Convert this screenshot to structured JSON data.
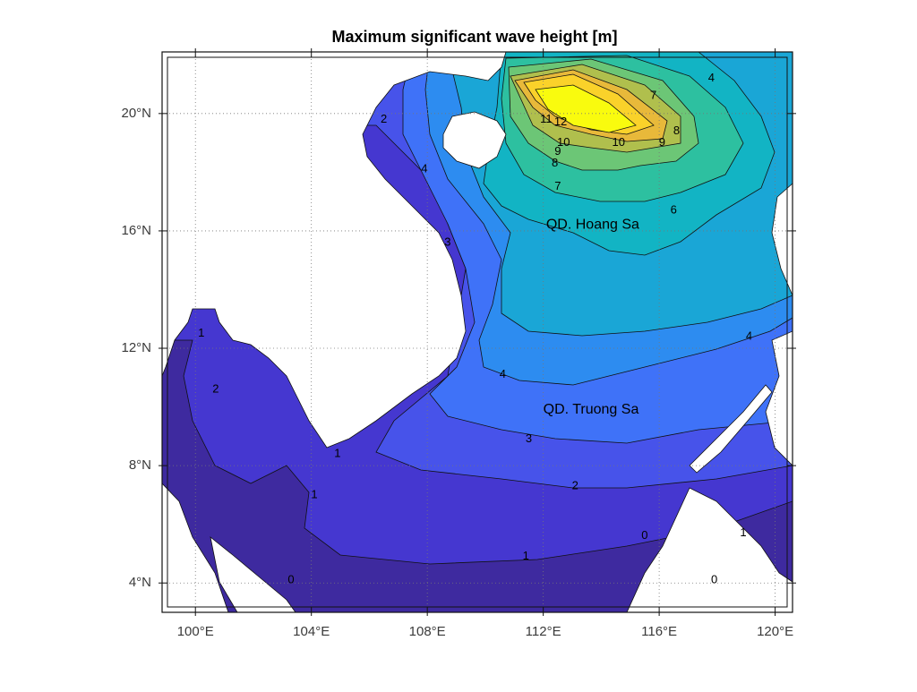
{
  "chart_data": {
    "type": "contour-map",
    "title": "Maximum significant wave height [m]",
    "xlim": [
      98.85,
      120.6
    ],
    "ylim": [
      3.0,
      22.1
    ],
    "xticks": [
      {
        "value": 100,
        "label": "100°E"
      },
      {
        "value": 104,
        "label": "104°E"
      },
      {
        "value": 108,
        "label": "108°E"
      },
      {
        "value": 112,
        "label": "112°E"
      },
      {
        "value": 116,
        "label": "116°E"
      },
      {
        "value": 120,
        "label": "120°E"
      }
    ],
    "yticks": [
      {
        "value": 4,
        "label": "4°N"
      },
      {
        "value": 8,
        "label": "8°N"
      },
      {
        "value": 12,
        "label": "12°N"
      },
      {
        "value": 16,
        "label": "16°N"
      },
      {
        "value": 20,
        "label": "20°N"
      }
    ],
    "grid": true,
    "contour_labels": [
      {
        "value": 7,
        "lon": 115.8,
        "lat": 20.6
      },
      {
        "value": 4,
        "lon": 117.8,
        "lat": 21.2
      },
      {
        "value": 8,
        "lon": 116.6,
        "lat": 19.4
      },
      {
        "value": 9,
        "lon": 116.1,
        "lat": 19.0
      },
      {
        "value": 10,
        "lon": 114.6,
        "lat": 19.0
      },
      {
        "value": 10,
        "lon": 112.7,
        "lat": 19.0
      },
      {
        "value": 11,
        "lon": 112.1,
        "lat": 19.8
      },
      {
        "value": 12,
        "lon": 112.6,
        "lat": 19.7
      },
      {
        "value": 9,
        "lon": 112.5,
        "lat": 18.7
      },
      {
        "value": 8,
        "lon": 112.4,
        "lat": 18.3
      },
      {
        "value": 7,
        "lon": 112.5,
        "lat": 17.5
      },
      {
        "value": 6,
        "lon": 116.5,
        "lat": 16.7
      },
      {
        "value": 3,
        "lon": 108.7,
        "lat": 15.6
      },
      {
        "value": 2,
        "lon": 106.5,
        "lat": 19.8
      },
      {
        "value": 4,
        "lon": 107.9,
        "lat": 18.1
      },
      {
        "value": 4,
        "lon": 110.6,
        "lat": 11.1
      },
      {
        "value": 4,
        "lon": 119.1,
        "lat": 12.4
      },
      {
        "value": 3,
        "lon": 111.5,
        "lat": 8.9
      },
      {
        "value": 2,
        "lon": 113.1,
        "lat": 7.3
      },
      {
        "value": 1,
        "lon": 111.4,
        "lat": 4.9
      },
      {
        "value": 1,
        "lon": 104.1,
        "lat": 7.0
      },
      {
        "value": 1,
        "lon": 104.9,
        "lat": 8.4
      },
      {
        "value": 2,
        "lon": 100.7,
        "lat": 10.6
      },
      {
        "value": 1,
        "lon": 100.2,
        "lat": 12.5
      },
      {
        "value": 0,
        "lon": 103.3,
        "lat": 4.1
      },
      {
        "value": 0,
        "lon": 115.5,
        "lat": 5.6
      },
      {
        "value": 0,
        "lon": 117.9,
        "lat": 4.1
      },
      {
        "value": 1,
        "lon": 118.9,
        "lat": 5.7
      }
    ],
    "place_labels": [
      {
        "text": "QD. Hoang Sa",
        "lon": 112.1,
        "lat": 16.2
      },
      {
        "text": "QD. Truong Sa",
        "lon": 112.0,
        "lat": 9.9
      }
    ]
  }
}
